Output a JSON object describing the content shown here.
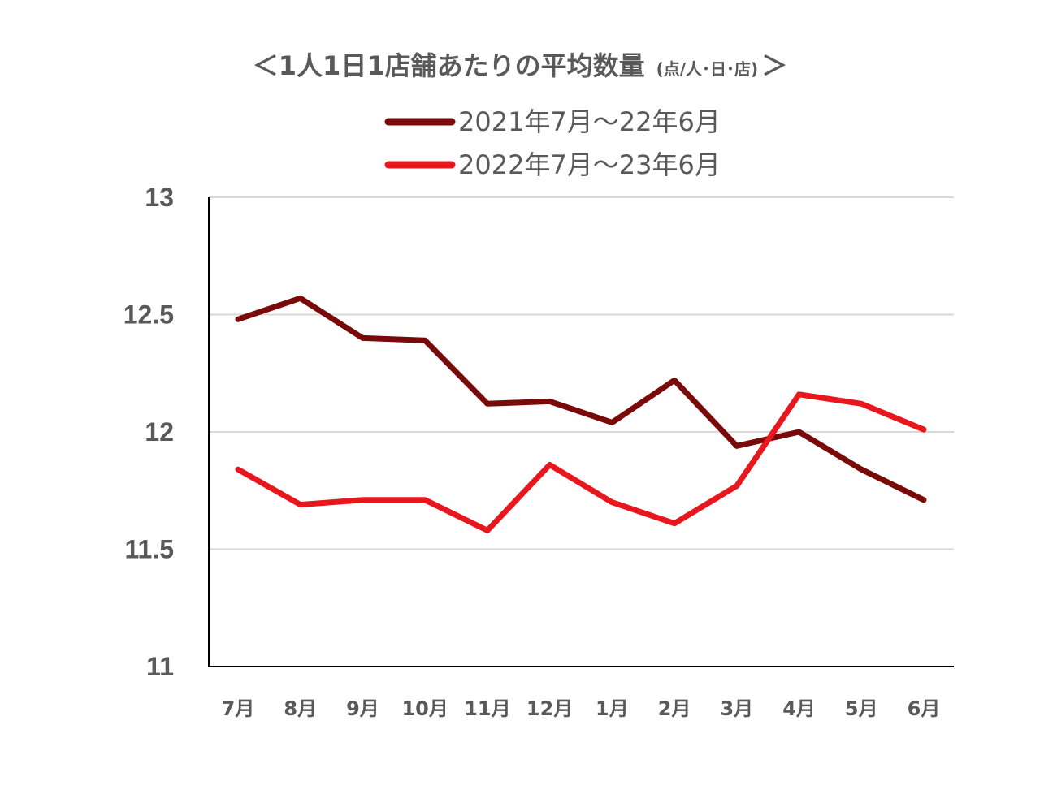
{
  "chart_data": {
    "type": "line",
    "title": "＜1人1日1店舗あたりの平均数量",
    "title_unit": "(点/人･日･店)",
    "title_close": "＞",
    "categories": [
      "7月",
      "8月",
      "9月",
      "10月",
      "11月",
      "12月",
      "1月",
      "2月",
      "3月",
      "4月",
      "5月",
      "6月"
    ],
    "series": [
      {
        "name": "2021年7月～22年6月",
        "color": "#7a0a0a",
        "values": [
          12.48,
          12.57,
          12.4,
          12.39,
          12.12,
          12.13,
          12.04,
          12.22,
          11.94,
          12.0,
          11.84,
          11.71
        ]
      },
      {
        "name": "2022年7月～23年6月",
        "color": "#e8171d",
        "values": [
          11.84,
          11.69,
          11.71,
          11.71,
          11.58,
          11.86,
          11.7,
          11.61,
          11.77,
          12.16,
          12.12,
          12.01
        ]
      }
    ],
    "yticks": [
      "13",
      "12.5",
      "12",
      "11.5",
      "11"
    ],
    "ylim": [
      11,
      13
    ],
    "grid": true,
    "legend_position": "top"
  }
}
